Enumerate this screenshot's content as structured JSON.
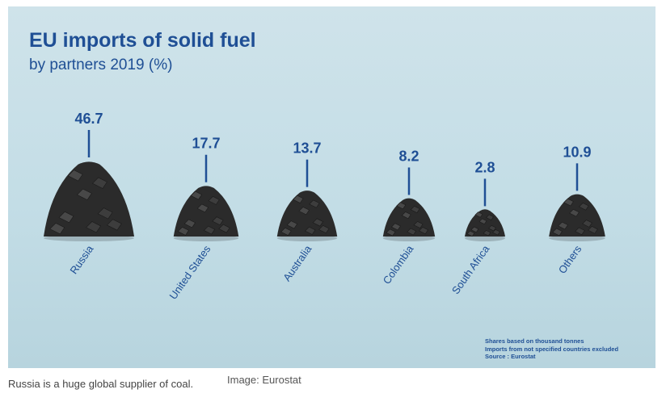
{
  "chart_data": {
    "type": "bar",
    "title": "EU imports of solid fuel",
    "subtitle": "by partners 2019 (%)",
    "categories": [
      "Russia",
      "United States",
      "Australia",
      "Colombia",
      "South Africa",
      "Others"
    ],
    "values": [
      46.7,
      17.7,
      13.7,
      8.2,
      2.8,
      10.9
    ],
    "value_labels": [
      "46.7",
      "17.7",
      "13.7",
      "8.2",
      "2.8",
      "10.9"
    ],
    "notes": [
      "Shares based on thousand tonnes",
      "Imports from not specified countries excluded",
      "Source : Eurostat"
    ],
    "colors": {
      "text": "#1f4f95",
      "coal": "#2b2b2b",
      "background": "#c6dee6"
    }
  },
  "caption": "Russia is a huge global supplier of coal.",
  "credit": "Image: Eurostat"
}
